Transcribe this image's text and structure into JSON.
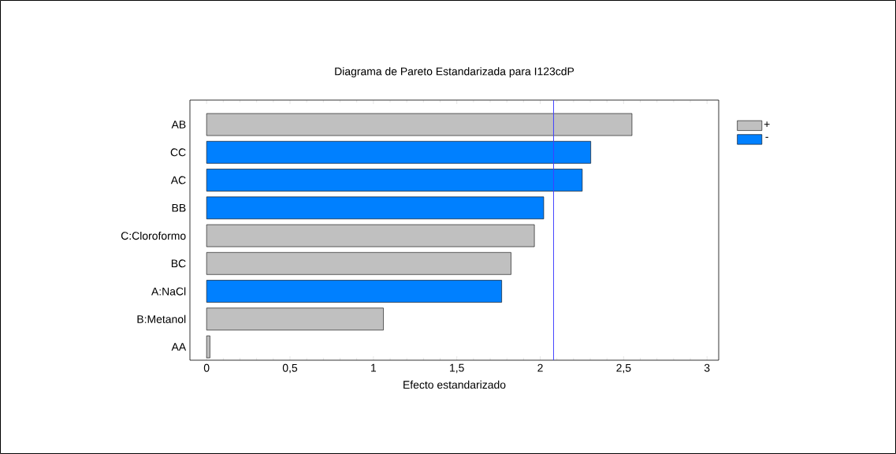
{
  "chart_data": {
    "type": "bar",
    "orientation": "horizontal",
    "title": "Diagrama de Pareto Estandarizada para I123cdP",
    "xlabel": "Efecto estandarizado",
    "categories": [
      "AB",
      "CC",
      "AC",
      "BB",
      "C:Cloroformo",
      "BC",
      "A:NaCl",
      "B:Metanol",
      "AA"
    ],
    "series": [
      {
        "name": "+",
        "color": "#c0c0c0",
        "values": [
          2.55,
          null,
          null,
          null,
          1.965,
          1.825,
          null,
          1.06,
          0.02
        ]
      },
      {
        "name": "-",
        "color": "#0080ff",
        "values": [
          null,
          2.303,
          2.252,
          2.021,
          null,
          null,
          1.769,
          null,
          null
        ]
      }
    ],
    "xlim": [
      -0.1,
      3.07
    ],
    "xticks": [
      0,
      {
        "value": 0.5,
        "label": "0,5"
      },
      1,
      {
        "value": 1.5,
        "label": "1,5"
      },
      2,
      {
        "value": 2.5,
        "label": "2,5"
      },
      3
    ],
    "ref_lines": [
      {
        "axis": "x",
        "value": 2.08,
        "color": "#4040ff"
      }
    ],
    "legend": "top right",
    "grid": false
  }
}
